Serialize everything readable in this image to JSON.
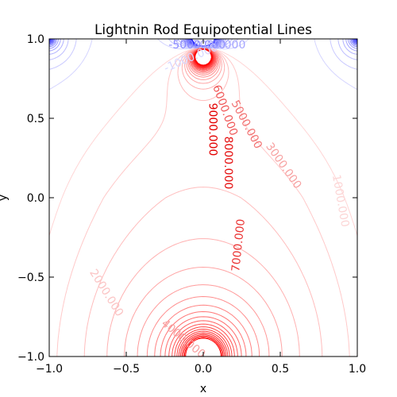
{
  "chart_data": {
    "type": "contour",
    "title": "Lightnin Rod Equipotential Lines",
    "xlabel": "x",
    "ylabel": "y",
    "xlim": [
      -1.0,
      1.0
    ],
    "ylim": [
      -1.0,
      1.0
    ],
    "x_ticks": [
      "−1.0",
      "−0.5",
      "0.0",
      "0.5",
      "1.0"
    ],
    "y_ticks": [
      "−1.0",
      "−0.5",
      "0.0",
      "0.5",
      "1.0"
    ],
    "grid": false,
    "colormap": "bwr",
    "colors": {
      "positive": "#ff0000",
      "negative": "#0000ff"
    },
    "contour_labels": [
      {
        "text": "9000.000",
        "x": 0.06,
        "y": 0.43,
        "color": "#e30000",
        "rotation": 90
      },
      {
        "text": "8000.000",
        "x": 0.16,
        "y": 0.22,
        "color": "#e51111",
        "rotation": 90
      },
      {
        "text": "7000.000",
        "x": 0.23,
        "y": -0.3,
        "color": "#eb3535",
        "rotation": -84
      },
      {
        "text": "6000.000",
        "x": 0.14,
        "y": 0.55,
        "color": "#f05a5a",
        "rotation": 70
      },
      {
        "text": "5000.000",
        "x": 0.28,
        "y": 0.46,
        "color": "#f27373",
        "rotation": 62
      },
      {
        "text": "4000.000",
        "x": -0.13,
        "y": -0.89,
        "color": "#f7a0a0",
        "rotation": 40
      },
      {
        "text": "3000.000",
        "x": 0.52,
        "y": 0.2,
        "color": "#f7a2a2",
        "rotation": 55
      },
      {
        "text": "2000.000",
        "x": -0.63,
        "y": -0.6,
        "color": "#fbc4c4",
        "rotation": 58
      },
      {
        "text": "1000.000",
        "x": 0.89,
        "y": -0.02,
        "color": "#fcd6d6",
        "rotation": 80
      },
      {
        "text": "-1000.000",
        "x": -0.08,
        "y": 0.88,
        "color": "#d8d8ff",
        "rotation": -23
      },
      {
        "text": "-5000.000",
        "x": -0.04,
        "y": 0.96,
        "color": "#8a8aff",
        "rotation": 0
      },
      {
        "text": "-3000.000",
        "x": 0.09,
        "y": 0.96,
        "color": "#a5a5ff",
        "rotation": 0
      }
    ]
  }
}
